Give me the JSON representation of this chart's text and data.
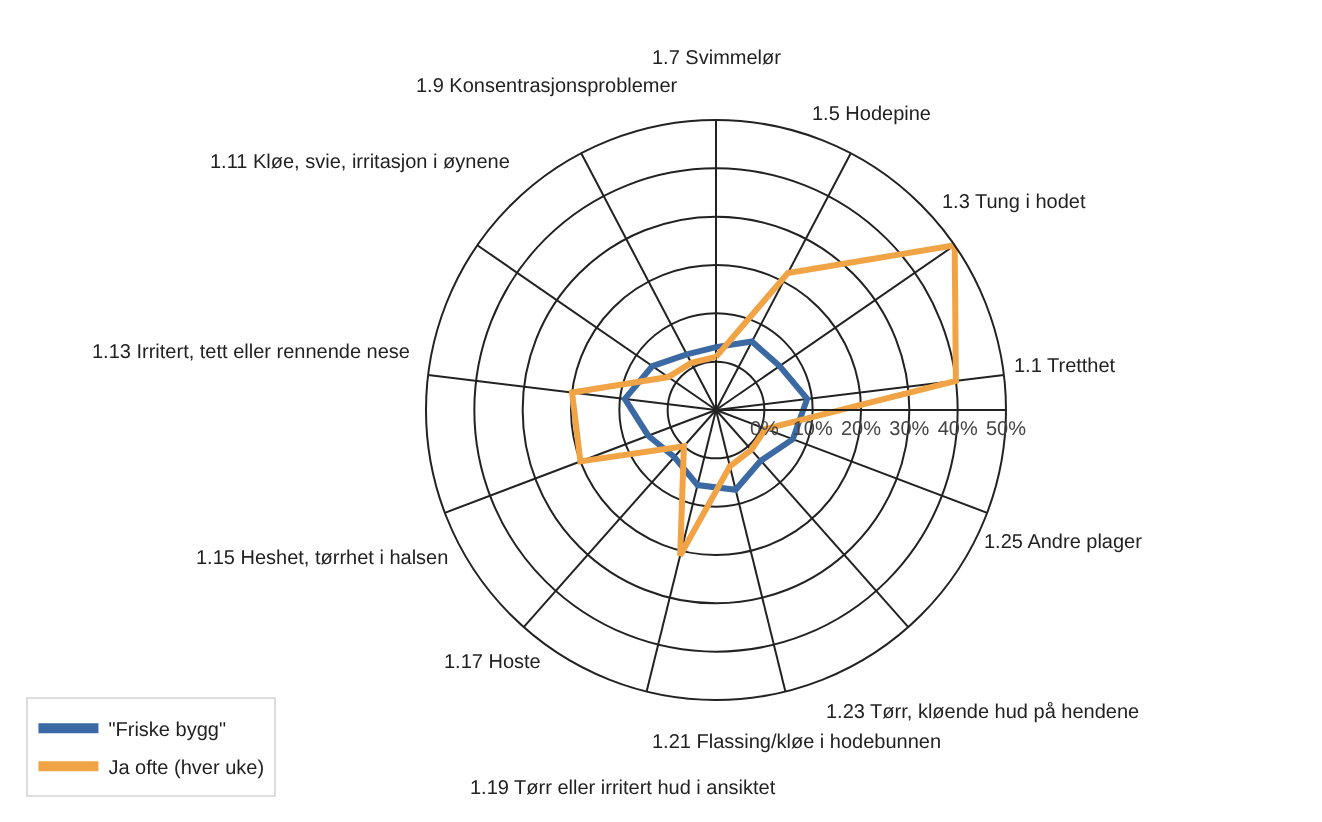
{
  "chart_data": {
    "type": "radar",
    "categories": [
      "1.7 Svimmelør",
      "1.5 Hodepine",
      "1.3 Tung i hodet",
      "1.1 Tretthet",
      "1.25 Andre plager",
      "1.23 Tørr, kløende hud på hendene",
      "1.21 Flassing/kløe i hodebunnen",
      "1.19 Tørr eller irritert hud i ansiktet",
      "1.17 Hoste",
      "1.15 Heshet, tørrhet i halsen",
      "1.13 Irritert, tett eller rennende nese",
      "1.11 Kløe, svie, irritasjon i øynene",
      "1.9 Konsentrasjonsproblemer"
    ],
    "series": [
      {
        "name": "\"Friske bygg\"",
        "color": "#3b69a3",
        "values": [
          3,
          6,
          6,
          9,
          7,
          4,
          7,
          6,
          3,
          5,
          9,
          6,
          3
        ]
      },
      {
        "name": "Ja ofte (hver uke)",
        "color": "#f0a445",
        "values": [
          1,
          22,
          50,
          40,
          1,
          1,
          2,
          21,
          0,
          20,
          20,
          2,
          1
        ]
      }
    ],
    "ylim": [
      -10,
      50
    ],
    "yticks": [
      {
        "value": 0,
        "label": "0%"
      },
      {
        "value": 10,
        "label": "10%"
      },
      {
        "value": 20,
        "label": "20%"
      },
      {
        "value": 30,
        "label": "30%"
      },
      {
        "value": 40,
        "label": "40%"
      },
      {
        "value": 50,
        "label": "50%"
      }
    ],
    "grid": true,
    "legend": "bottom left",
    "marker": "none",
    "line_style": "solid"
  }
}
